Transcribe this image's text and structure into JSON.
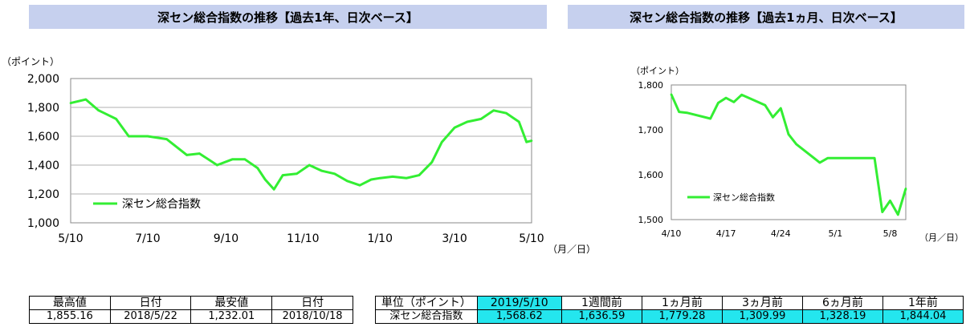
{
  "left_panel": {
    "title": "深セン総合指数の推移【過去1年、日次ベース】",
    "unit": "（ポイント）",
    "x_unit": "（月／日）"
  },
  "right_panel": {
    "title": "深セン総合指数の推移【過去1ヵ月、日次ベース】",
    "unit": "（ポイント）",
    "x_unit": "（月／日）"
  },
  "colors": {
    "line": "#33ee33",
    "title_band": "#c6d0ee",
    "highlight": "#24e6ee"
  },
  "chart_data": [
    {
      "type": "line",
      "title": "深セン総合指数の推移【過去1年、日次ベース】",
      "ylabel": "（ポイント）",
      "xlabel": "（月／日）",
      "ylim": [
        1000,
        2000
      ],
      "yticks": [
        "1,000",
        "1,200",
        "1,400",
        "1,600",
        "1,800",
        "2,000"
      ],
      "xticks": [
        "5/10",
        "7/10",
        "9/10",
        "11/10",
        "1/10",
        "3/10",
        "5/10"
      ],
      "grid": true,
      "legend": "bottom-left",
      "series": [
        {
          "name": "深セン総合指数",
          "x": [
            "2018-05-10",
            "2018-05-22",
            "2018-06-01",
            "2018-06-15",
            "2018-06-25",
            "2018-07-10",
            "2018-07-25",
            "2018-08-10",
            "2018-08-20",
            "2018-09-03",
            "2018-09-15",
            "2018-09-25",
            "2018-10-05",
            "2018-10-11",
            "2018-10-18",
            "2018-10-25",
            "2018-11-05",
            "2018-11-15",
            "2018-11-25",
            "2018-12-05",
            "2018-12-15",
            "2018-12-25",
            "2019-01-03",
            "2019-01-10",
            "2019-01-20",
            "2019-01-31",
            "2019-02-10",
            "2019-02-20",
            "2019-02-28",
            "2019-03-10",
            "2019-03-20",
            "2019-03-31",
            "2019-04-10",
            "2019-04-20",
            "2019-04-30",
            "2019-05-06",
            "2019-05-10"
          ],
          "values": [
            1830,
            1855,
            1780,
            1720,
            1600,
            1600,
            1580,
            1470,
            1480,
            1400,
            1440,
            1440,
            1380,
            1300,
            1232,
            1330,
            1340,
            1400,
            1360,
            1340,
            1290,
            1260,
            1300,
            1310,
            1320,
            1310,
            1330,
            1420,
            1560,
            1660,
            1700,
            1720,
            1779,
            1760,
            1700,
            1560,
            1569
          ]
        }
      ]
    },
    {
      "type": "line",
      "title": "深セン総合指数の推移【過去1ヵ月、日次ベース】",
      "ylabel": "（ポイント）",
      "xlabel": "（月／日）",
      "ylim": [
        1500,
        1800
      ],
      "yticks": [
        "1,500",
        "1,600",
        "1,700",
        "1,800"
      ],
      "xticks": [
        "4/10",
        "4/17",
        "4/24",
        "5/1",
        "5/8"
      ],
      "grid": false,
      "legend": "bottom-left",
      "series": [
        {
          "name": "深セン総合指数",
          "x": [
            "2019-04-10",
            "2019-04-11",
            "2019-04-12",
            "2019-04-15",
            "2019-04-16",
            "2019-04-17",
            "2019-04-18",
            "2019-04-19",
            "2019-04-22",
            "2019-04-23",
            "2019-04-24",
            "2019-04-25",
            "2019-04-26",
            "2019-04-29",
            "2019-04-30",
            "2019-05-06",
            "2019-05-07",
            "2019-05-08",
            "2019-05-09",
            "2019-05-10"
          ],
          "values": [
            1779,
            1740,
            1738,
            1725,
            1760,
            1771,
            1762,
            1778,
            1755,
            1728,
            1748,
            1690,
            1668,
            1627,
            1637,
            1637,
            1517,
            1542,
            1511,
            1569
          ]
        }
      ]
    }
  ],
  "stats_table": {
    "headers": [
      "最高値",
      "日付",
      "最安値",
      "日付"
    ],
    "values": [
      "1,855.16",
      "2018/5/22",
      "1,232.01",
      "2018/10/18"
    ]
  },
  "change_table": {
    "header_label": "単位（ポイント）",
    "periods": [
      "2019/5/10",
      "1週間前",
      "1ヵ月前",
      "3ヵ月前",
      "6ヵ月前",
      "1年前"
    ],
    "row_label": "深セン総合指数",
    "values": [
      "1,568.62",
      "1,636.59",
      "1,779.28",
      "1,309.99",
      "1,328.19",
      "1,844.04"
    ]
  }
}
